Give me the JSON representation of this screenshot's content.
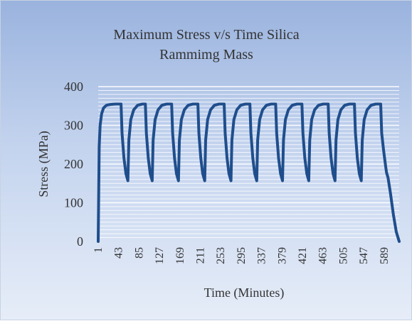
{
  "chart_data": {
    "type": "line",
    "title_line1": "Maximum Stress v/s Time Silica",
    "title_line2": "Rammimg Mass",
    "xlabel": "Time (Minutes)",
    "ylabel": "Stress (MPa)",
    "ylim": [
      0,
      400
    ],
    "yticks": [
      0,
      100,
      200,
      300,
      400
    ],
    "xticks": [
      1,
      43,
      85,
      127,
      169,
      211,
      253,
      295,
      337,
      379,
      421,
      463,
      505,
      547,
      589
    ],
    "xlim": [
      1,
      620
    ],
    "grid": true,
    "legend": "none",
    "line_color": "#1f4e8c",
    "series": [
      {
        "x": [
          1,
          3,
          5,
          8,
          12,
          18,
          26,
          36,
          48,
          50,
          54,
          58,
          62,
          64,
          68,
          74,
          82,
          92,
          98,
          100,
          104,
          108,
          112,
          114,
          118,
          124,
          132,
          142,
          152,
          154,
          158,
          162,
          166,
          168,
          172,
          178,
          186,
          196,
          206,
          208,
          212,
          216,
          220,
          222,
          226,
          232,
          240,
          250,
          260,
          262,
          266,
          270,
          274,
          276,
          280,
          286,
          294,
          304,
          313,
          315,
          319,
          323,
          327,
          329,
          333,
          339,
          347,
          357,
          366,
          368,
          372,
          376,
          380,
          382,
          386,
          392,
          400,
          410,
          420,
          422,
          426,
          430,
          434,
          436,
          440,
          446,
          454,
          464,
          474,
          476,
          480,
          484,
          488,
          490,
          494,
          500,
          508,
          518,
          528,
          530,
          534,
          538,
          542,
          544,
          548,
          554,
          562,
          572,
          582,
          584,
          588,
          592,
          594,
          597,
          602,
          608,
          614,
          620
        ],
        "y": [
          0,
          245,
          300,
          330,
          345,
          352,
          354,
          355,
          355,
          280,
          215,
          175,
          157,
          262,
          315,
          340,
          352,
          355,
          355,
          280,
          215,
          175,
          157,
          262,
          315,
          340,
          352,
          355,
          355,
          280,
          215,
          175,
          157,
          262,
          315,
          340,
          352,
          355,
          355,
          280,
          215,
          175,
          157,
          262,
          315,
          340,
          352,
          355,
          355,
          280,
          215,
          175,
          157,
          262,
          315,
          340,
          352,
          355,
          355,
          280,
          215,
          175,
          157,
          262,
          315,
          340,
          352,
          355,
          355,
          280,
          215,
          175,
          157,
          262,
          315,
          340,
          352,
          355,
          355,
          280,
          215,
          175,
          157,
          262,
          315,
          340,
          352,
          355,
          355,
          280,
          215,
          175,
          157,
          262,
          315,
          340,
          352,
          355,
          355,
          280,
          215,
          175,
          157,
          262,
          315,
          340,
          352,
          355,
          355,
          280,
          235,
          195,
          178,
          165,
          125,
          70,
          25,
          0
        ]
      }
    ]
  }
}
